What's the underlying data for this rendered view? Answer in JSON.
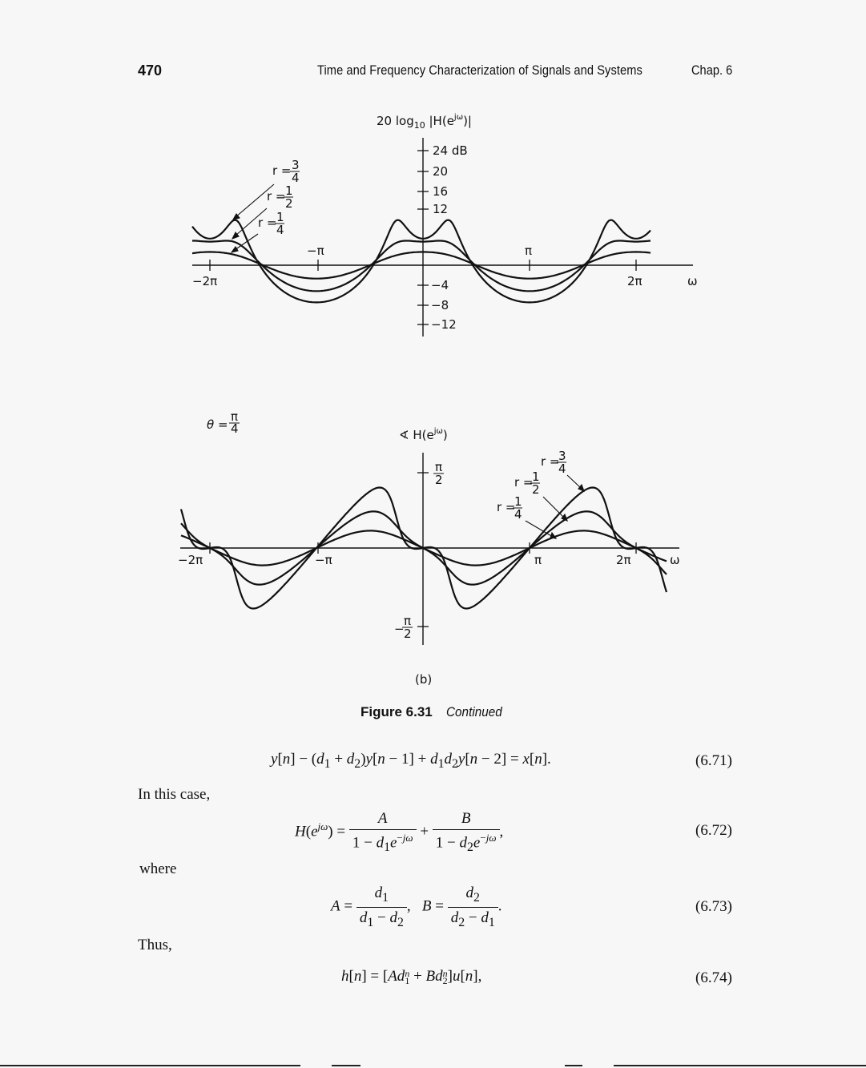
{
  "header": {
    "page_number": "470",
    "running_title": "Time and Frequency Characterization of Signals and Systems",
    "chapter": "Chap. 6"
  },
  "figure_top": {
    "ylabel": "20 log10 |H(e^jω)|",
    "ylabel_parts": {
      "pre": "20 log",
      "sub": "10",
      "mid": " |H(e",
      "sup": "jω",
      "post": ")|"
    },
    "yticks": [
      "24 dB",
      "20",
      "16",
      "12",
      "−4",
      "−8",
      "−12"
    ],
    "xticks": [
      "−2π",
      "−π",
      "π",
      "2π"
    ],
    "xaxis_label": "ω",
    "curve_labels": [
      {
        "r": "r =",
        "num": "3",
        "den": "4"
      },
      {
        "r": "r =",
        "num": "1",
        "den": "2"
      },
      {
        "r": "r =",
        "num": "1",
        "den": "4"
      }
    ]
  },
  "figure_bottom": {
    "theta_label": {
      "pre": "θ =",
      "num": "π",
      "den": "4"
    },
    "ylabel_parts": {
      "pre": "∢ H(e",
      "sup": "jω",
      "post": ")"
    },
    "ytick_top": {
      "num": "π",
      "den": "2"
    },
    "ytick_bottom": {
      "sign": "−",
      "num": "π",
      "den": "2"
    },
    "xticks": [
      "−2π",
      "−π",
      "π",
      "2π"
    ],
    "xaxis_label": "ω",
    "curve_labels": [
      {
        "r": "r =",
        "num": "3",
        "den": "4"
      },
      {
        "r": "r =",
        "num": "1",
        "den": "2"
      },
      {
        "r": "r =",
        "num": "1",
        "den": "4"
      }
    ],
    "sublabel": "(b)"
  },
  "caption": {
    "figure": "Figure 6.31",
    "text": "Continued"
  },
  "text": {
    "in_this_case": "In this case,",
    "where": "where",
    "thus": "Thus,"
  },
  "equations": {
    "eq71": {
      "number": "(6.71)"
    },
    "eq72": {
      "number": "(6.72)"
    },
    "eq73": {
      "number": "(6.73)"
    },
    "eq74": {
      "number": "(6.74)"
    }
  }
}
